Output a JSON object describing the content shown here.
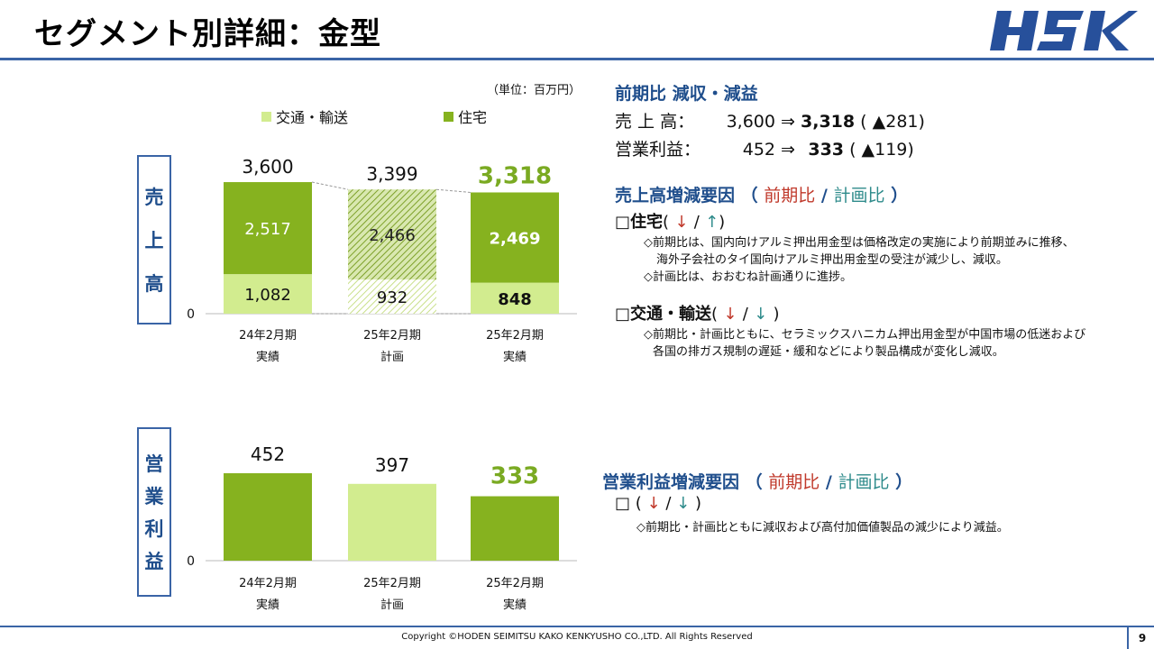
{
  "page_title": "セグメント別詳細：金型",
  "logo_text": "HSK",
  "unit_label": "（単位：百万円）",
  "legend": [
    {
      "name": "交通・輸送",
      "color": "#d2ec8f"
    },
    {
      "name": "住宅",
      "color": "#86b21f"
    }
  ],
  "sales_label": [
    "売",
    "上",
    "高"
  ],
  "op_label": [
    "営",
    "業",
    "利",
    "益"
  ],
  "chart_data": [
    {
      "type": "bar",
      "stacked": true,
      "categories": [
        [
          "24年2月期",
          "実績"
        ],
        [
          "25年2月期",
          "計画"
        ],
        [
          "25年2月期",
          "実績"
        ]
      ],
      "series": [
        {
          "name": "交通・輸送",
          "values": [
            1082,
            932,
            848
          ]
        },
        {
          "name": "住宅",
          "values": [
            2517,
            2466,
            2469
          ]
        }
      ],
      "totals": [
        "3,600",
        "3,399",
        "3,318"
      ],
      "segment_labels": {
        "交通・輸送": [
          "1,082",
          "932",
          "848"
        ],
        "住宅": [
          "2,517",
          "2,466",
          "2,469"
        ]
      },
      "zero_label": "0",
      "middle_bar_hatched": true
    },
    {
      "type": "bar",
      "categories": [
        [
          "24年2月期",
          "実績"
        ],
        [
          "25年2月期",
          "計画"
        ],
        [
          "25年2月期",
          "実績"
        ]
      ],
      "values": [
        452,
        397,
        333
      ],
      "value_labels": [
        "452",
        "397",
        "333"
      ],
      "zero_label": "0"
    }
  ],
  "right": {
    "yoy_heading": "前期比 減収・減益",
    "sales_row": {
      "label": "売 上 高：",
      "prev": "3,600",
      "arrow": "⇒",
      "curr": "3,318",
      "diff": "( ▲281)"
    },
    "op_row": {
      "label": "営業利益：",
      "prev": "452",
      "arrow": "⇒",
      "curr": "333",
      "diff": "( ▲119)"
    },
    "sales_factor_heading": "売上高増減要因",
    "op_factor_heading": "営業利益増減要因",
    "paren_open": "（",
    "paren_close": "）",
    "vs_prev": "前期比",
    "slash": "/",
    "vs_plan": "計画比",
    "housing_item": "□住宅",
    "housing_arrows": [
      "(",
      "↓",
      "/",
      "↑",
      ")"
    ],
    "housing_notes": [
      "◇前期比は、国内向けアルミ押出用金型は価格改定の実施により前期並みに推移、",
      "海外子会社のタイ国向けアルミ押出用金型の受注が減少し、減収。",
      "◇計画比は、おおむね計画通りに進捗。"
    ],
    "transport_item": "□交通・輸送",
    "transport_arrows": [
      "(",
      "↓",
      "/",
      "↓",
      ")"
    ],
    "transport_notes": [
      "◇前期比・計画比ともに、セラミックスハニカム押出用金型が中国市場の低迷および",
      "各国の排ガス規制の遅延・緩和などにより製品構成が変化し減収。"
    ],
    "op_item": "□",
    "op_arrows": [
      "(",
      "↓",
      "/",
      "↓",
      ")"
    ],
    "op_notes": [
      "◇前期比・計画比ともに減収および高付加価値製品の減少により減益。"
    ]
  },
  "footer": "Copyright ©HODEN SEIMITSU KAKO KENKYUSHO CO.,LTD. All Rights Reserved",
  "page_number": "9"
}
